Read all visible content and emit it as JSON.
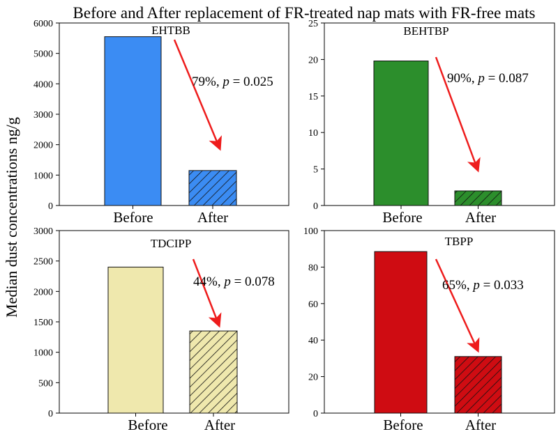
{
  "figure_title": "Before and After replacement of FR-treated nap mats with FR-free mats",
  "ylabel": "Median dust concentrations ng/g",
  "chart_data": [
    {
      "type": "bar",
      "title": "EHTBB",
      "categories": [
        "Before",
        "After"
      ],
      "values": [
        5550,
        1150
      ],
      "ylim": [
        0,
        6000
      ],
      "yticks": [
        "0",
        "1000",
        "2000",
        "3000",
        "4000",
        "5000",
        "6000"
      ],
      "colors": [
        "#3b8cf3",
        "#3b8cf3"
      ],
      "hatch": [
        false,
        true
      ],
      "annotation": {
        "pct": "79%,",
        "p_letter": "p",
        "p_rest": " = 0.025"
      }
    },
    {
      "type": "bar",
      "title": "BEHTBP",
      "categories": [
        "Before",
        "After"
      ],
      "values": [
        19.8,
        2.0
      ],
      "ylim": [
        0,
        25
      ],
      "yticks": [
        "0",
        "5",
        "10",
        "15",
        "20",
        "25"
      ],
      "colors": [
        "#2c8e2c",
        "#2c8e2c"
      ],
      "hatch": [
        false,
        true
      ],
      "annotation": {
        "pct": "90%,",
        "p_letter": "p",
        "p_rest": " = 0.087"
      }
    },
    {
      "type": "bar",
      "title": "TDCIPP",
      "categories": [
        "Before",
        "After"
      ],
      "values": [
        2400,
        1350
      ],
      "ylim": [
        0,
        3000
      ],
      "yticks": [
        "0",
        "500",
        "1000",
        "1500",
        "2000",
        "2500",
        "3000"
      ],
      "colors": [
        "#efe8ad",
        "#efe8ad"
      ],
      "hatch": [
        false,
        true
      ],
      "annotation": {
        "pct": "44%,",
        "p_letter": "p",
        "p_rest": " = 0.078"
      }
    },
    {
      "type": "bar",
      "title": "TBPP",
      "categories": [
        "Before",
        "After"
      ],
      "values": [
        88.5,
        31
      ],
      "ylim": [
        0,
        100
      ],
      "yticks": [
        "0",
        "20",
        "40",
        "60",
        "80",
        "100"
      ],
      "colors": [
        "#cf0c12",
        "#cf0c12"
      ],
      "hatch": [
        false,
        true
      ],
      "annotation": {
        "pct": "65%,",
        "p_letter": "p",
        "p_rest": " = 0.033"
      }
    }
  ],
  "arrow_color": "#ee1c1c"
}
